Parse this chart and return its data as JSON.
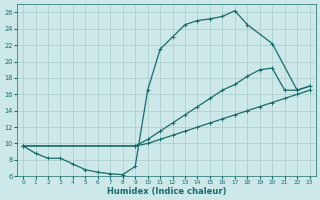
{
  "xlabel": "Humidex (Indice chaleur)",
  "background_color": "#cce8e8",
  "grid_color": "#aacccc",
  "line_color": "#1a6b6b",
  "xlim": [
    -0.5,
    23.5
  ],
  "ylim": [
    6,
    27
  ],
  "yticks": [
    6,
    8,
    10,
    12,
    14,
    16,
    18,
    20,
    22,
    24,
    26
  ],
  "xticks": [
    0,
    1,
    2,
    3,
    4,
    5,
    6,
    7,
    8,
    9,
    10,
    11,
    12,
    13,
    14,
    15,
    16,
    17,
    18,
    19,
    20,
    21,
    22,
    23
  ],
  "line1_x": [
    0,
    1,
    2,
    3,
    4,
    5,
    6,
    7,
    8,
    9,
    10,
    11,
    12,
    13,
    14,
    15,
    16,
    17,
    18,
    20,
    22,
    23
  ],
  "line1_y": [
    9.7,
    8.8,
    8.2,
    8.2,
    7.5,
    6.8,
    6.5,
    6.3,
    6.2,
    7.2,
    16.5,
    21.5,
    23.0,
    24.5,
    25.0,
    25.2,
    25.5,
    26.2,
    24.5,
    22.2,
    16.5,
    17.0
  ],
  "line2_x": [
    0,
    9,
    10,
    11,
    12,
    13,
    14,
    15,
    16,
    17,
    18,
    19,
    20,
    21,
    22,
    23
  ],
  "line2_y": [
    9.7,
    9.7,
    10.5,
    11.5,
    12.5,
    13.5,
    14.5,
    15.5,
    16.5,
    17.2,
    18.2,
    19.0,
    19.2,
    16.5,
    16.5,
    17.0
  ],
  "line3_x": [
    0,
    9,
    10,
    11,
    12,
    13,
    14,
    15,
    16,
    17,
    18,
    19,
    20,
    21,
    22,
    23
  ],
  "line3_y": [
    9.7,
    9.7,
    10.0,
    10.5,
    11.0,
    11.5,
    12.0,
    12.5,
    13.0,
    13.5,
    14.0,
    14.5,
    15.0,
    15.5,
    16.0,
    16.5
  ]
}
